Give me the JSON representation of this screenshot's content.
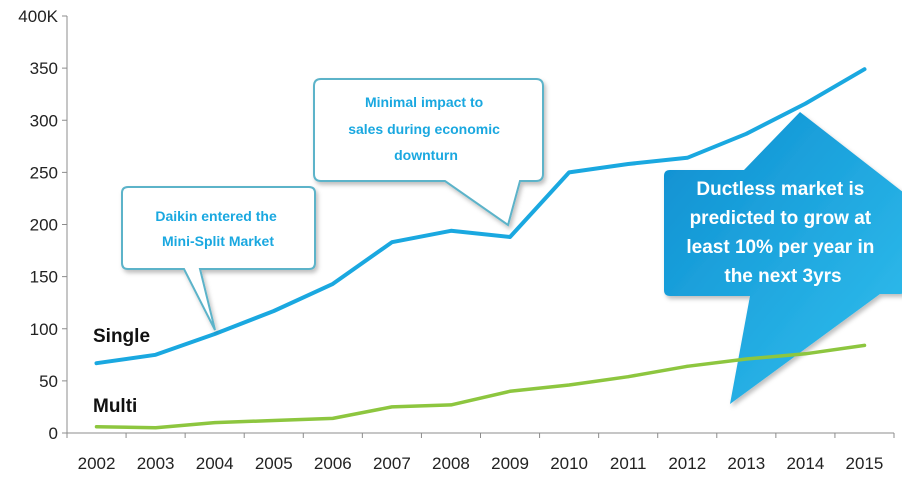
{
  "chart_data": {
    "type": "line",
    "x": [
      "2002",
      "2003",
      "2004",
      "2005",
      "2006",
      "2007",
      "2008",
      "2009",
      "2010",
      "2011",
      "2012",
      "2013",
      "2014",
      "2015"
    ],
    "ylim": [
      0,
      400
    ],
    "y_ticks": [
      "0",
      "50",
      "100",
      "150",
      "200",
      "250",
      "300",
      "350",
      "400K"
    ],
    "grid": false,
    "series": [
      {
        "name": "Single",
        "color": "#1aa8e0",
        "values": [
          67,
          75,
          95,
          117,
          143,
          183,
          194,
          188,
          250,
          258,
          264,
          287,
          316,
          349
        ]
      },
      {
        "name": "Multi",
        "color": "#8dc63f",
        "values": [
          6,
          5,
          10,
          12,
          14,
          25,
          27,
          40,
          46,
          54,
          64,
          71,
          76,
          84
        ]
      }
    ],
    "annotations": [
      {
        "id": "daikin",
        "lines": [
          "Daikin entered the",
          "Mini-Split Market"
        ],
        "x": "2004",
        "y": 95
      },
      {
        "id": "minimal",
        "lines": [
          "Minimal impact to",
          "sales during economic",
          "downturn"
        ],
        "x": "2009",
        "y": 188
      },
      {
        "id": "ductless",
        "lines": [
          "Ductless market is",
          "predicted to grow at",
          "least 10% per year in",
          "the next 3yrs"
        ]
      }
    ]
  },
  "colors": {
    "single_line": "#1aa8e0",
    "multi_line": "#8dc63f",
    "callout_text": "#1aa8e0",
    "callout_border": "#5bb3c9",
    "big_callout_fill": "#1aa8e0"
  }
}
